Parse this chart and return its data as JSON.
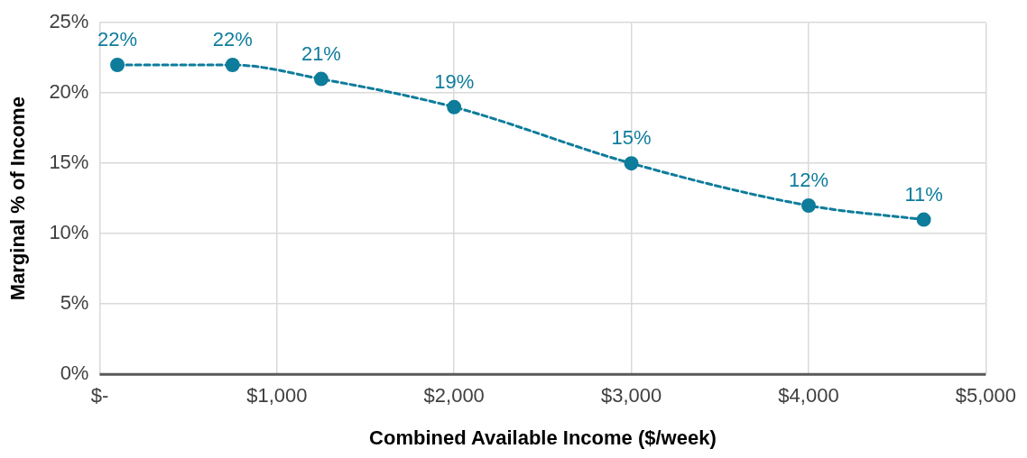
{
  "chart_data": {
    "type": "line",
    "xlabel": "Combined Available Income ($/week)",
    "ylabel": "Marginal % of Income",
    "x": [
      100,
      750,
      1250,
      2000,
      3000,
      4000,
      4650
    ],
    "series": [
      {
        "color": "#0e7c9b",
        "values": [
          22,
          22,
          21,
          19,
          15,
          12,
          11
        ],
        "value_labels": [
          "22%",
          "22%",
          "21%",
          "19%",
          "15%",
          "12%",
          "11%"
        ]
      }
    ],
    "xlim": [
      0,
      5000
    ],
    "xticks": [
      {
        "value": 0,
        "label": "$-"
      },
      {
        "value": 1000,
        "label": "$1,000"
      },
      {
        "value": 2000,
        "label": "$2,000"
      },
      {
        "value": 3000,
        "label": "$3,000"
      },
      {
        "value": 4000,
        "label": "$4,000"
      },
      {
        "value": 5000,
        "label": "$5,000"
      }
    ],
    "ylim": [
      0,
      25
    ],
    "yticks": [
      {
        "value": 0,
        "label": "0%"
      },
      {
        "value": 5,
        "label": "5%"
      },
      {
        "value": 10,
        "label": "10%"
      },
      {
        "value": 15,
        "label": "15%"
      },
      {
        "value": 20,
        "label": "20%"
      },
      {
        "value": 25,
        "label": "25%"
      }
    ],
    "grid": true,
    "legend": false,
    "marker": "circle",
    "line_style": "dashed"
  }
}
